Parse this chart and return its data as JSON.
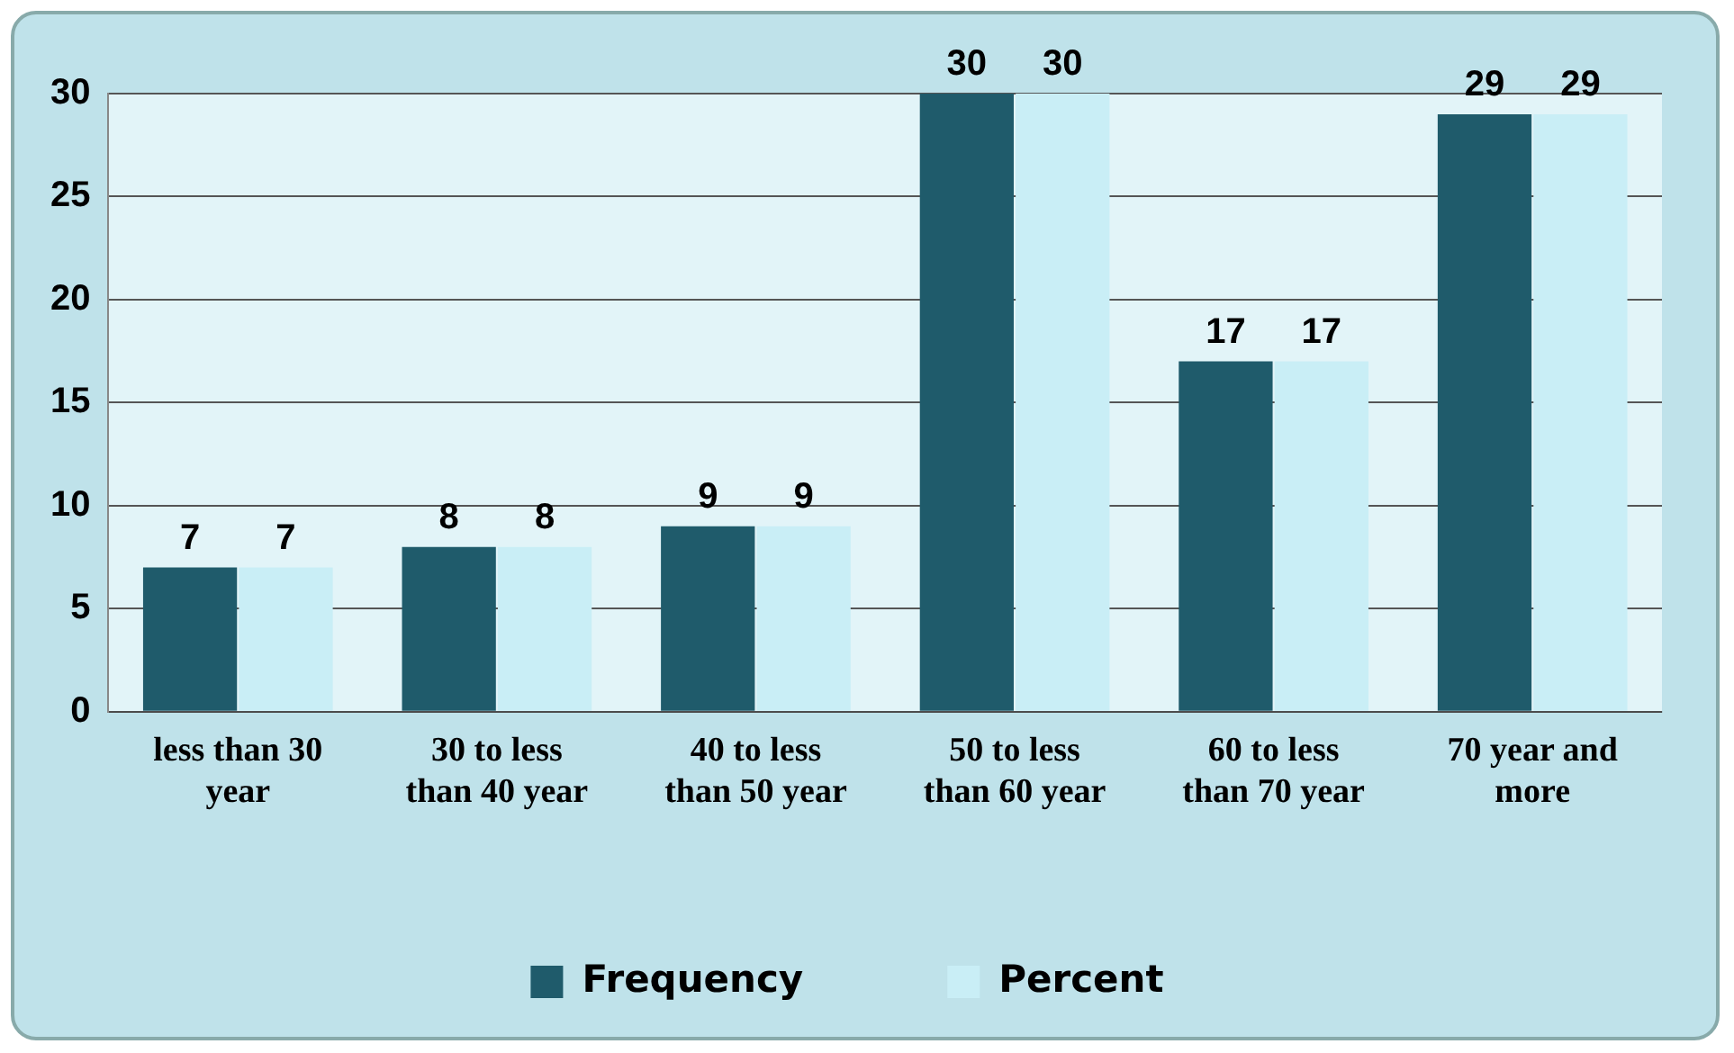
{
  "chart_data": {
    "type": "bar",
    "categories": [
      "less than 30 year",
      "30 to less than 40 year",
      "40 to less than 50 year",
      "50 to less than 60 year",
      "60 to less than 70 year",
      "70 year and more"
    ],
    "series": [
      {
        "name": "Frequency",
        "color": "#1f5b6b",
        "values": [
          7,
          8,
          9,
          30,
          17,
          29
        ]
      },
      {
        "name": "Percent",
        "color": "#c9eef6",
        "values": [
          7,
          8,
          9,
          30,
          17,
          29
        ]
      }
    ],
    "ylim": [
      0,
      30
    ],
    "yticks": [
      0,
      5,
      10,
      15,
      20,
      25,
      30
    ],
    "grid": "y",
    "legend": "bottom",
    "data_labels": true
  }
}
